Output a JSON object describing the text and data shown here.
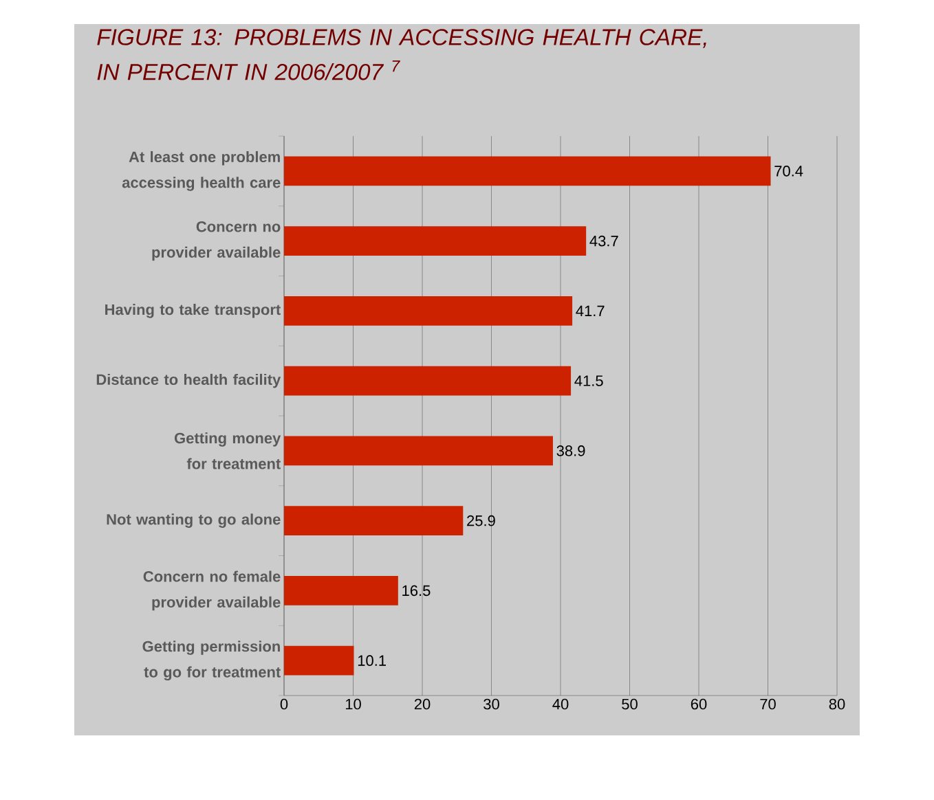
{
  "chart_data": {
    "type": "bar",
    "orientation": "horizontal",
    "title": "FIGURE 13:  PROBLEMS IN ACCESSING HEALTH CARE, IN PERCENT  IN 2006/2007 $^{7}$",
    "categories": [
      "At least one problem accessing health care",
      "Concern no provider available",
      "Having to take transport",
      "Distance to health facility",
      "Getting money for treatment",
      "Not wanting to go alone",
      "Concern no female provider available",
      "Getting permission to go for treatment"
    ],
    "values": [
      70.4,
      43.7,
      41.7,
      41.5,
      38.9,
      25.9,
      16.5,
      10.1
    ],
    "color": "#cc2200",
    "xlim": [
      0,
      80
    ],
    "xticks": [
      0,
      10,
      20,
      30,
      40,
      50,
      60,
      70,
      80
    ],
    "grid": "x",
    "data_labels": true
  }
}
